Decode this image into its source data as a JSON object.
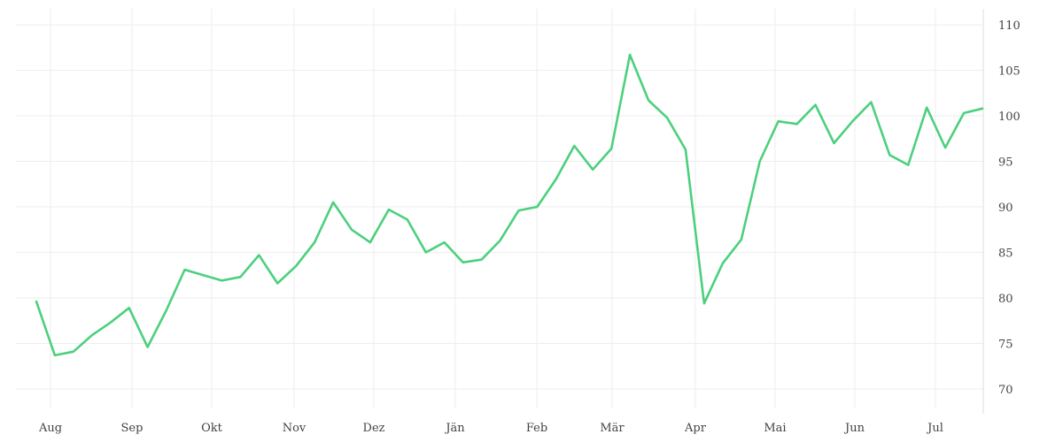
{
  "chart_data": {
    "type": "line",
    "title": "",
    "xlabel": "",
    "ylabel": "",
    "ylim": [
      68,
      111
    ],
    "y_ticks": [
      70,
      75,
      80,
      85,
      90,
      95,
      100,
      105,
      110
    ],
    "x_tick_labels": [
      "Aug",
      "Sep",
      "Okt",
      "Nov",
      "Dez",
      "Jän",
      "Feb",
      "Mär",
      "Apr",
      "Mai",
      "Jun",
      "Jul"
    ],
    "grid": true,
    "y_axis_position": "right",
    "line_color": "#4cd07d",
    "series": [
      {
        "values": [
          79.6,
          73.7,
          74.1,
          75.9,
          77.3,
          78.9,
          74.6,
          78.6,
          83.1,
          82.5,
          81.9,
          82.3,
          84.7,
          81.6,
          83.5,
          86.1,
          90.5,
          87.5,
          86.1,
          89.7,
          88.6,
          85.0,
          86.1,
          83.9,
          84.2,
          86.3,
          89.6,
          90.0,
          93.0,
          96.7,
          94.1,
          96.4,
          106.7,
          101.7,
          99.8,
          96.3,
          79.4,
          83.8,
          86.4,
          95.0,
          99.4,
          99.1,
          101.2,
          97.0,
          99.4,
          101.5,
          95.7,
          94.6,
          100.9,
          96.5,
          100.3,
          100.8
        ]
      }
    ]
  }
}
